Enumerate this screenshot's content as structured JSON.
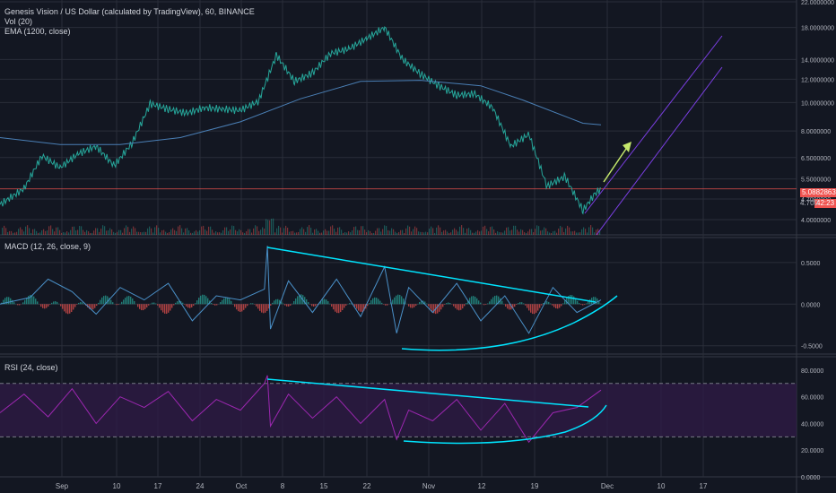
{
  "legend": {
    "symbol": "Genesis Vision / US Dollar (calculated by TradingView), 60, BINANCE",
    "vol": "Vol (20)",
    "ema": "EMA (1200, close)",
    "macd": "MACD (12, 26, close, 9)",
    "rsi": "RSI (24, close)"
  },
  "price_tags": {
    "last_price": "5.08828632",
    "countdown": "42:23",
    "partial_label": "4.700"
  },
  "colors": {
    "background": "#131722",
    "grid": "#2a2e39",
    "up": "#26a69a",
    "down": "#ef5350",
    "ema": "#4a7fb5",
    "trendline": "#00e5ff",
    "channel": "#7b3fe4",
    "arrow": "#c5e86c",
    "rsi_line": "#9c27b0",
    "rsi_band": "#2e1a45"
  },
  "chart_data": [
    {
      "type": "line",
      "panel": "price",
      "title": "Genesis Vision / US Dollar (calculated by TradingView), 60, BINANCE",
      "y_scale": "log",
      "ylim": [
        3.6,
        22
      ],
      "x_ticks": [
        "Sep",
        "10",
        "17",
        "24",
        "Oct",
        "8",
        "15",
        "22",
        "Nov",
        "12",
        "19",
        "Dec",
        "10",
        "17"
      ],
      "y_ticks": [
        "22.0000000",
        "18.0000000",
        "14.0000000",
        "12.0000000",
        "10.0000000",
        "8.0000000",
        "6.5000000",
        "5.5000000",
        "4.7000000",
        "4.0000000"
      ],
      "series": [
        {
          "name": "Genesis Vision / US Dollar",
          "x": [
            0,
            4,
            7,
            10,
            13,
            16,
            19,
            22,
            25,
            28,
            31,
            34,
            37,
            40,
            43,
            46,
            49,
            52,
            55,
            58,
            61,
            64,
            67,
            70,
            73,
            76,
            79,
            82,
            85,
            88,
            91,
            94,
            97,
            99,
            100
          ],
          "values": [
            4.5,
            5.1,
            6.6,
            6.0,
            6.7,
            7.1,
            6.1,
            7.3,
            9.9,
            9.5,
            9.2,
            9.6,
            9.5,
            9.4,
            10.1,
            14.5,
            11.8,
            12.6,
            14.7,
            15.2,
            16.5,
            18.0,
            14.0,
            12.5,
            11.4,
            10.6,
            10.7,
            9.6,
            7.1,
            7.8,
            5.2,
            5.6,
            4.3,
            4.9,
            5.09
          ]
        },
        {
          "name": "EMA (1200, close)",
          "x": [
            0,
            10,
            20,
            30,
            40,
            50,
            60,
            70,
            80,
            87,
            97,
            100
          ],
          "values": [
            7.6,
            7.2,
            7.2,
            7.6,
            8.6,
            10.3,
            11.8,
            11.9,
            11.4,
            10.2,
            8.5,
            8.4
          ]
        }
      ],
      "last_price": 5.08828632,
      "annotations": [
        "ascending channel",
        "up arrow"
      ]
    },
    {
      "type": "line",
      "panel": "macd",
      "title": "MACD (12, 26, close, 9)",
      "ylim": [
        -0.6,
        0.8
      ],
      "y_ticks": [
        "0.5000",
        "0.0000",
        "-0.5000"
      ],
      "series": [
        {
          "name": "MACD",
          "x": [
            0,
            5,
            8,
            12,
            16,
            20,
            24,
            28,
            32,
            36,
            40,
            44,
            44.5,
            45,
            48,
            52,
            56,
            60,
            64,
            66,
            68,
            72,
            76,
            80,
            84,
            88,
            92,
            96,
            100
          ],
          "values": [
            0.0,
            0.08,
            0.3,
            0.15,
            -0.12,
            0.2,
            0.05,
            0.25,
            -0.2,
            0.1,
            0.05,
            0.18,
            0.7,
            -0.3,
            0.28,
            -0.1,
            0.3,
            -0.15,
            0.45,
            -0.35,
            0.2,
            -0.1,
            0.25,
            -0.2,
            0.1,
            -0.35,
            0.2,
            -0.1,
            0.05
          ]
        }
      ],
      "annotations": [
        "descending trendline",
        "curved support line"
      ]
    },
    {
      "type": "line",
      "panel": "rsi",
      "title": "RSI (24, close)",
      "ylim": [
        0,
        90
      ],
      "y_ticks": [
        "80.0000",
        "60.0000",
        "40.0000",
        "20.0000",
        "0.0000"
      ],
      "bands": [
        30,
        70
      ],
      "series": [
        {
          "name": "RSI",
          "x": [
            0,
            4,
            8,
            12,
            16,
            20,
            24,
            28,
            32,
            36,
            40,
            44,
            44.5,
            45,
            48,
            52,
            56,
            60,
            64,
            66,
            68,
            72,
            76,
            80,
            84,
            88,
            92,
            96,
            100
          ],
          "values": [
            48,
            62,
            45,
            66,
            40,
            60,
            52,
            64,
            42,
            58,
            50,
            70,
            76,
            38,
            62,
            44,
            60,
            40,
            58,
            28,
            50,
            42,
            58,
            35,
            55,
            26,
            48,
            52,
            65
          ]
        }
      ],
      "annotations": [
        "descending trendline",
        "curved support line"
      ]
    }
  ]
}
